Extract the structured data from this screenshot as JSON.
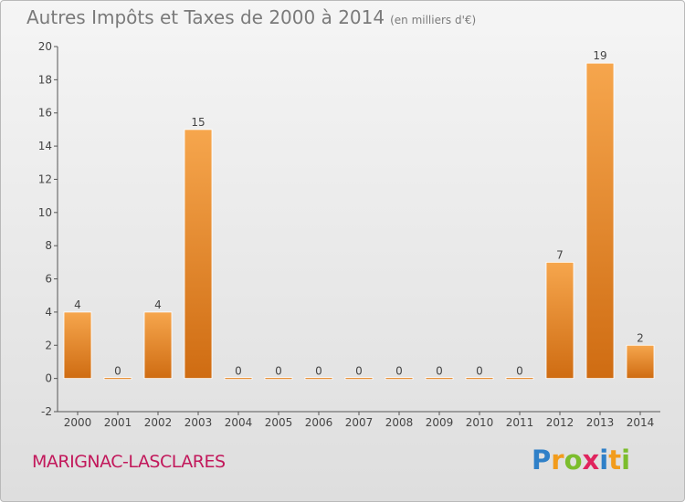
{
  "title": "Autres Impôts et Taxes de 2000 à 2014",
  "unit_note": "(en milliers d'€)",
  "commune": "MARIGNAC-LASCLARES",
  "logo": {
    "letters": [
      "P",
      "r",
      "o",
      "x",
      "i",
      "t",
      "i"
    ],
    "colors": [
      "#2f80c8",
      "#f29c1c",
      "#7cbd2d",
      "#e0245e",
      "#2f80c8",
      "#f29c1c",
      "#7cbd2d"
    ]
  },
  "colors": {
    "bar_top": "#f6a64d",
    "bar_bottom": "#cf6c12",
    "text": "#7a7a7a"
  },
  "chart_data": {
    "type": "bar",
    "categories": [
      "2000",
      "2001",
      "2002",
      "2003",
      "2004",
      "2005",
      "2006",
      "2007",
      "2008",
      "2009",
      "2010",
      "2011",
      "2012",
      "2013",
      "2014"
    ],
    "values": [
      4,
      0,
      4,
      15,
      0,
      0,
      0,
      0,
      0,
      0,
      0,
      0,
      7,
      19,
      2
    ],
    "value_labels": [
      "4",
      "0",
      "4",
      "15",
      "0",
      "0",
      "0",
      "0",
      "0",
      "0",
      "0",
      "0",
      "7",
      "19",
      "2"
    ],
    "ylim": [
      -2,
      20
    ],
    "yticks": [
      "-2",
      "0",
      "2",
      "4",
      "6",
      "8",
      "10",
      "12",
      "14",
      "16",
      "18",
      "20"
    ],
    "grid": false
  }
}
